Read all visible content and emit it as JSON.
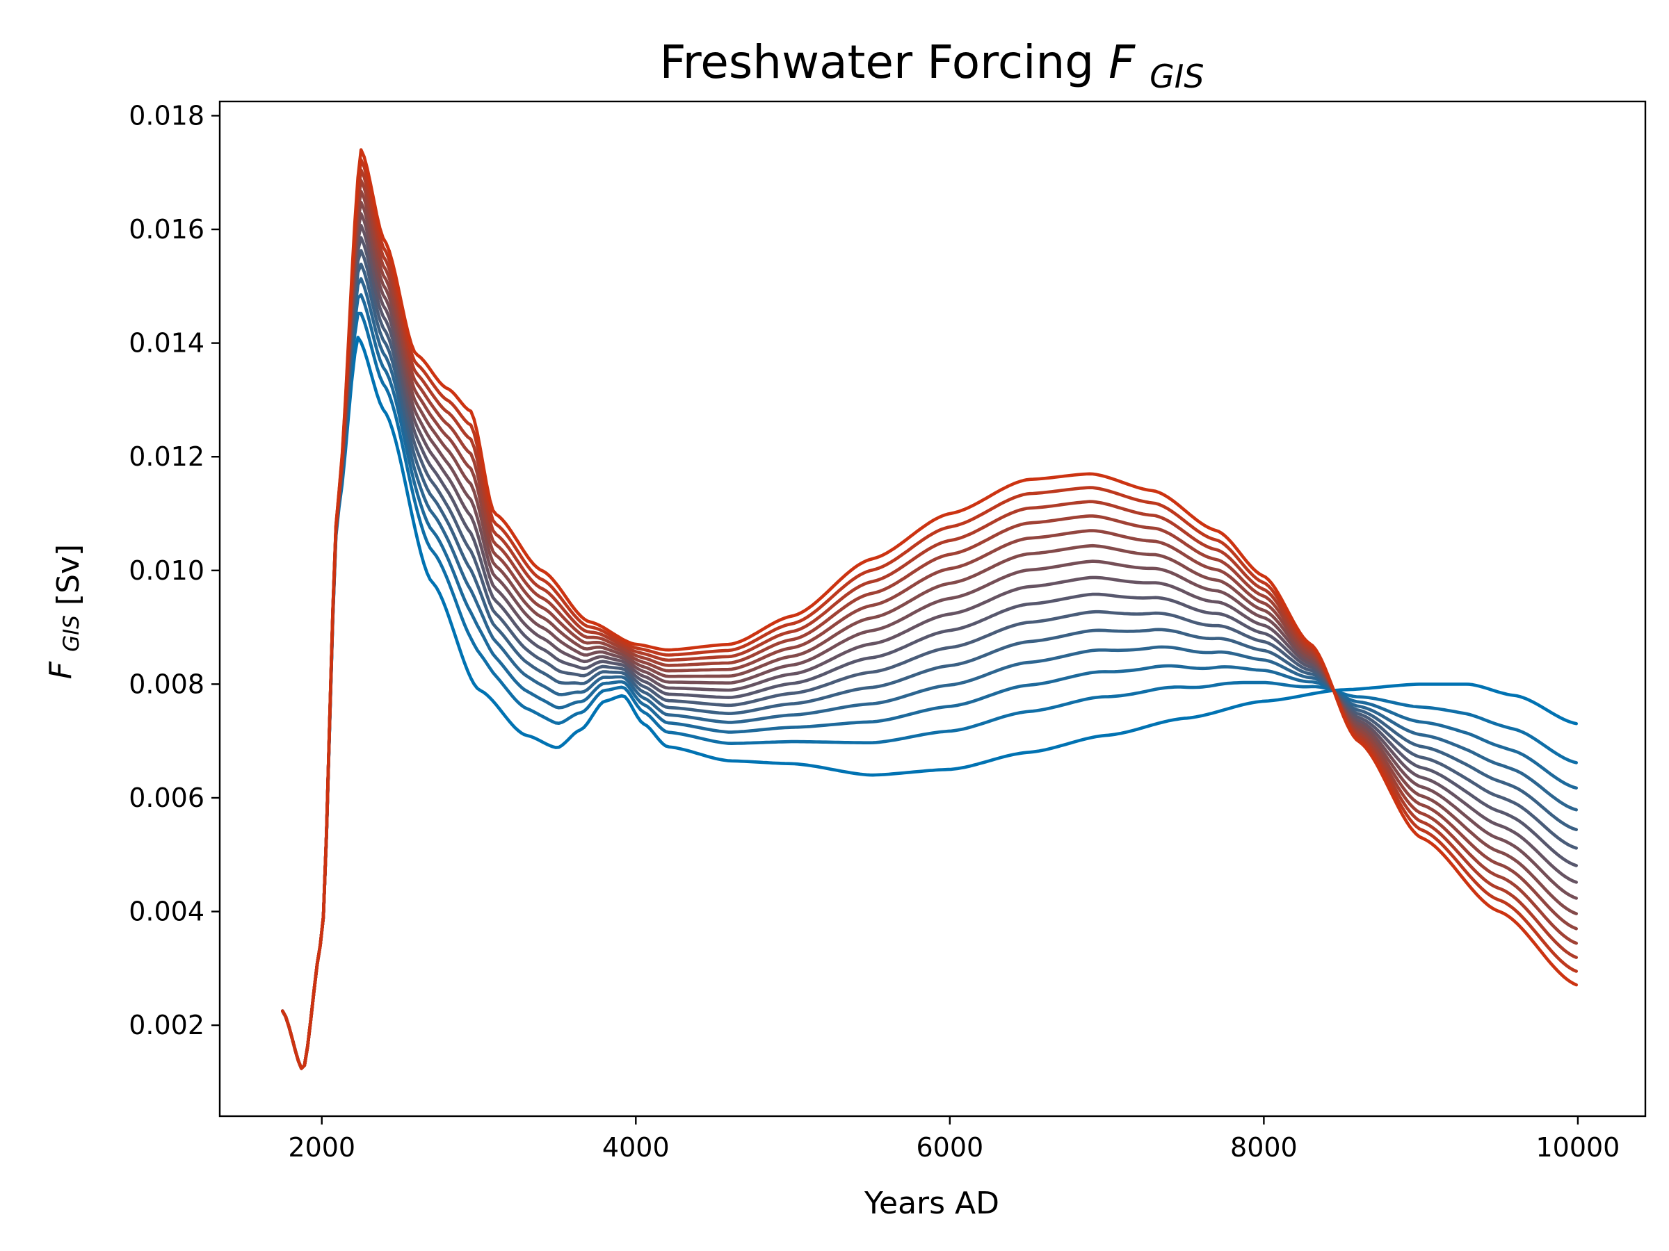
{
  "chart_data": {
    "type": "line",
    "title": "Freshwater Forcing",
    "title_symbol": "F",
    "title_subscript": "GIS",
    "xlabel": "Years AD",
    "ylabel": "[Sv]",
    "ylabel_symbol": "F",
    "ylabel_subscript": "GIS",
    "xlim": [
      1350,
      10430
    ],
    "ylim": [
      0.0004,
      0.01825
    ],
    "xticks": [
      2000,
      4000,
      6000,
      8000,
      10000
    ],
    "xtick_labels": [
      "2000",
      "4000",
      "6000",
      "8000",
      "10000"
    ],
    "yticks": [
      0.002,
      0.004,
      0.006,
      0.008,
      0.01,
      0.012,
      0.014,
      0.016,
      0.018
    ],
    "ytick_labels": [
      "0.002",
      "0.004",
      "0.006",
      "0.008",
      "0.010",
      "0.012",
      "0.014",
      "0.016",
      "0.018"
    ],
    "grid": false,
    "legend": false,
    "colors": {
      "start": "#0072b2",
      "end": "#cc3311"
    },
    "x_start": 1750,
    "x_end": 10000,
    "series_count": 15,
    "ensemble_extremes": {
      "blue_member": {
        "x": [
          1750,
          1880,
          2000,
          2100,
          2230,
          2400,
          2700,
          3000,
          3300,
          3500,
          3650,
          3800,
          3920,
          4050,
          4200,
          4600,
          5000,
          5500,
          6000,
          6500,
          7000,
          7500,
          8000,
          8500,
          9000,
          9300,
          9600,
          10000
        ],
        "y": [
          0.00225,
          0.0012,
          0.0035,
          0.011,
          0.0141,
          0.0128,
          0.0098,
          0.0079,
          0.0071,
          0.00688,
          0.0072,
          0.0077,
          0.0078,
          0.0073,
          0.0069,
          0.00665,
          0.0066,
          0.0064,
          0.0065,
          0.0068,
          0.0071,
          0.0074,
          0.0077,
          0.0079,
          0.008,
          0.008,
          0.0078,
          0.0073
        ]
      },
      "red_member": {
        "x": [
          1750,
          1880,
          2000,
          2100,
          2250,
          2400,
          2600,
          2800,
          2950,
          3100,
          3400,
          3700,
          4000,
          4200,
          4600,
          5000,
          5500,
          6000,
          6500,
          6900,
          7300,
          7700,
          8000,
          8300,
          8600,
          9000,
          9500,
          10000
        ],
        "y": [
          0.00225,
          0.0012,
          0.0035,
          0.0112,
          0.0174,
          0.0158,
          0.0138,
          0.0132,
          0.0128,
          0.011,
          0.01,
          0.0091,
          0.0087,
          0.0086,
          0.0087,
          0.0092,
          0.0102,
          0.011,
          0.0116,
          0.0117,
          0.0114,
          0.0107,
          0.0099,
          0.0087,
          0.007,
          0.0053,
          0.004,
          0.0027
        ]
      }
    }
  }
}
